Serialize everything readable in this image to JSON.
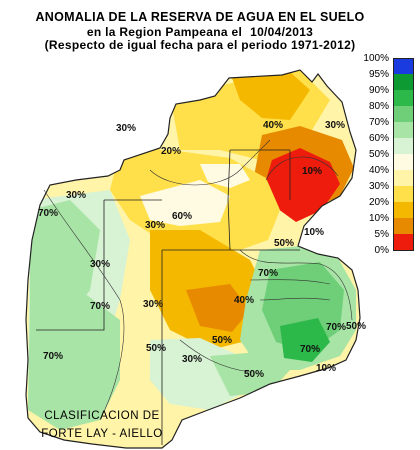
{
  "header": {
    "title": "ANOMALIA DE LA RESERVA DE AGUA EN EL SUELO",
    "subtitle": "en la Region Pampeana el",
    "date": "10/04/2013",
    "reference": "(Respecto de igual fecha para el periodo 1971-2012)"
  },
  "legend": {
    "items": [
      {
        "label": "100%",
        "color": "#1a3be0"
      },
      {
        "label": "95%",
        "color": "#0e9a32"
      },
      {
        "label": "90%",
        "color": "#2db84a"
      },
      {
        "label": "80%",
        "color": "#6fcf78"
      },
      {
        "label": "70%",
        "color": "#a8e4a6"
      },
      {
        "label": "60%",
        "color": "#d8f2d4"
      },
      {
        "label": "50%",
        "color": "#fffbe2"
      },
      {
        "label": "40%",
        "color": "#fff4a8"
      },
      {
        "label": "30%",
        "color": "#ffe04a"
      },
      {
        "label": "20%",
        "color": "#f5b800"
      },
      {
        "label": "10%",
        "color": "#e88a00"
      },
      {
        "label": "5%",
        "color": "#ee1c0c"
      }
    ],
    "bottom_label": "0%"
  },
  "map": {
    "contour_labels": [
      "30%",
      "40%",
      "20%",
      "30%",
      "10%",
      "30%",
      "60%",
      "70%",
      "30%",
      "50%",
      "70%",
      "10%",
      "40%",
      "30%",
      "30%",
      "50%",
      "70%",
      "50%",
      "70%",
      "70%",
      "50%",
      "70%",
      "10%",
      "30%",
      "50%"
    ]
  },
  "credit": {
    "line1": "CLASIFICACION DE",
    "line2": "FORTE LAY - AIELLO"
  }
}
